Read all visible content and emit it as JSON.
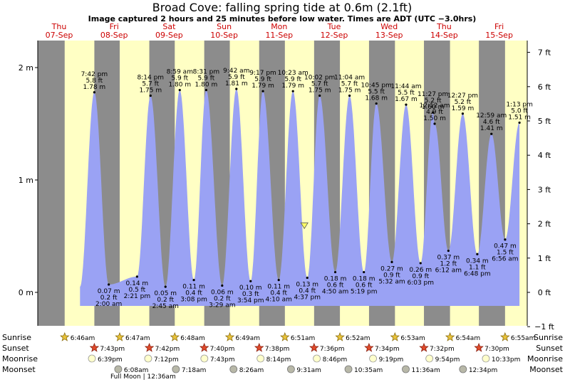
{
  "title": "Broad Cove: falling  spring tide at 0.6m (2.1ft)",
  "subtitle": "Image captured 2 hours and 25 minutes before low water. Times are ADT (UTC −3.0hrs)",
  "days": [
    {
      "dow": "Thu",
      "date": "07-Sep"
    },
    {
      "dow": "Fri",
      "date": "08-Sep"
    },
    {
      "dow": "Sat",
      "date": "09-Sep"
    },
    {
      "dow": "Sun",
      "date": "10-Sep"
    },
    {
      "dow": "Mon",
      "date": "11-Sep"
    },
    {
      "dow": "Tue",
      "date": "12-Sep"
    },
    {
      "dow": "Wed",
      "date": "13-Sep"
    },
    {
      "dow": "Thu",
      "date": "14-Sep"
    },
    {
      "dow": "Fri",
      "date": "15-Sep"
    }
  ],
  "colors": {
    "night": "#8c8c8c",
    "day": "#ffffc4",
    "water": "#9aa2f4",
    "date_red": "#cc0000",
    "marker": "#ffff66"
  },
  "chart_data": {
    "type": "area",
    "ylabel_left": [
      "2 m",
      "1 m",
      "0 m"
    ],
    "ylabel_right": [
      "7 ft",
      "6 ft",
      "5 ft",
      "4 ft",
      "3 ft",
      "2 ft",
      "1 ft",
      "0 ft",
      "−1 ft"
    ],
    "ylim_m": [
      -0.3,
      2.2
    ],
    "current_marker": {
      "height_m": 0.6
    },
    "high_tides": [
      {
        "time": "7:42 pm",
        "ft": "5.8 ft",
        "m": "1.78 m",
        "height": 1.78
      },
      {
        "time": "8:14 pm",
        "ft": "5.7 ft",
        "m": "1.75 m",
        "height": 1.75
      },
      {
        "time": "8:31 pm",
        "ft": "5.9 ft",
        "m": "1.80 m",
        "height": 1.8
      },
      {
        "time": "8:59 am",
        "ft": "5.9 ft",
        "m": "1.80 m",
        "height": 1.8
      },
      {
        "time": "9:17 pm",
        "ft": "5.9 ft",
        "m": "1.79 m",
        "height": 1.79
      },
      {
        "time": "9:42 am",
        "ft": "5.9 ft",
        "m": "1.81 m",
        "height": 1.81
      },
      {
        "time": "10:02 pm",
        "ft": "5.7 ft",
        "m": "1.75 m",
        "height": 1.75
      },
      {
        "time": "10:23 am",
        "ft": "5.9 ft",
        "m": "1.79 m",
        "height": 1.79
      },
      {
        "time": "10:45 pm",
        "ft": "5.5 ft",
        "m": "1.68 m",
        "height": 1.68
      },
      {
        "time": "11:04 am",
        "ft": "5.7 ft",
        "m": "1.75 m",
        "height": 1.75
      },
      {
        "time": "11:27 pm",
        "ft": "5.2 ft",
        "m": "1.60 m",
        "height": 1.6
      },
      {
        "time": "11:44 am",
        "ft": "5.5 ft",
        "m": "1.67 m",
        "height": 1.67
      },
      {
        "time": "12:12 am",
        "ft": "4.9 ft",
        "m": "1.50 m",
        "height": 1.5
      },
      {
        "time": "12:27 pm",
        "ft": "5.2 ft",
        "m": "1.59 m",
        "height": 1.59
      },
      {
        "time": "12:59 am",
        "ft": "4.6 ft",
        "m": "1.41 m",
        "height": 1.41
      },
      {
        "time": "1:13 pm",
        "ft": "5.0 ft",
        "m": "1.51 m",
        "height": 1.51
      }
    ],
    "low_tides": [
      {
        "m": "0.07 m",
        "ft": "0.2 ft",
        "time": "2:00 am",
        "height": 0.07
      },
      {
        "m": "0.14 m",
        "ft": "0.5 ft",
        "time": "2:21 pm",
        "height": 0.14
      },
      {
        "m": "0.05 m",
        "ft": "0.2 ft",
        "time": "2:45 am",
        "height": 0.05
      },
      {
        "m": "0.11 m",
        "ft": "0.4 ft",
        "time": "3:08 pm",
        "height": 0.11
      },
      {
        "m": "0.06 m",
        "ft": "0.2 ft",
        "time": "3:29 am",
        "height": 0.06
      },
      {
        "m": "0.10 m",
        "ft": "0.3 ft",
        "time": "3:54 pm",
        "height": 0.1
      },
      {
        "m": "0.11 m",
        "ft": "0.4 ft",
        "time": "4:10 am",
        "height": 0.11
      },
      {
        "m": "0.13 m",
        "ft": "0.4 ft",
        "time": "4:37 pm",
        "height": 0.13
      },
      {
        "m": "0.18 m",
        "ft": "0.6 ft",
        "time": "4:50 am",
        "height": 0.18
      },
      {
        "m": "0.18 m",
        "ft": "0.6 ft",
        "time": "5:19 pm",
        "height": 0.18
      },
      {
        "m": "0.27 m",
        "ft": "0.9 ft",
        "time": "5:32 am",
        "height": 0.27
      },
      {
        "m": "0.26 m",
        "ft": "0.9 ft",
        "time": "6:03 pm",
        "height": 0.26
      },
      {
        "m": "0.37 m",
        "ft": "1.2 ft",
        "time": "6:12 am",
        "height": 0.37
      },
      {
        "m": "0.34 m",
        "ft": "1.1 ft",
        "time": "6:48 pm",
        "height": 0.34
      },
      {
        "m": "0.47 m",
        "ft": "1.5 ft",
        "time": "6:56 am",
        "height": 0.47
      }
    ]
  },
  "rows": {
    "labels": [
      "Sunrise",
      "Sunset",
      "Moonrise",
      "Moonset"
    ],
    "sunrise": [
      "6:46am",
      "6:47am",
      "6:48am",
      "6:49am",
      "6:51am",
      "6:52am",
      "6:53am",
      "6:54am",
      "6:55am"
    ],
    "sunset": [
      "7:43pm",
      "7:42pm",
      "7:40pm",
      "7:38pm",
      "7:36pm",
      "7:34pm",
      "7:32pm",
      "7:30pm"
    ],
    "moonrise": [
      "6:39pm",
      "7:12pm",
      "7:43pm",
      "8:14pm",
      "8:46pm",
      "9:19pm",
      "9:54pm",
      "10:33pm"
    ],
    "moonset": [
      "6:08am",
      "7:18am",
      "8:26am",
      "9:31am",
      "10:35am",
      "11:36am",
      "12:34pm"
    ],
    "full_moon": "Full Moon | 12:36am"
  }
}
